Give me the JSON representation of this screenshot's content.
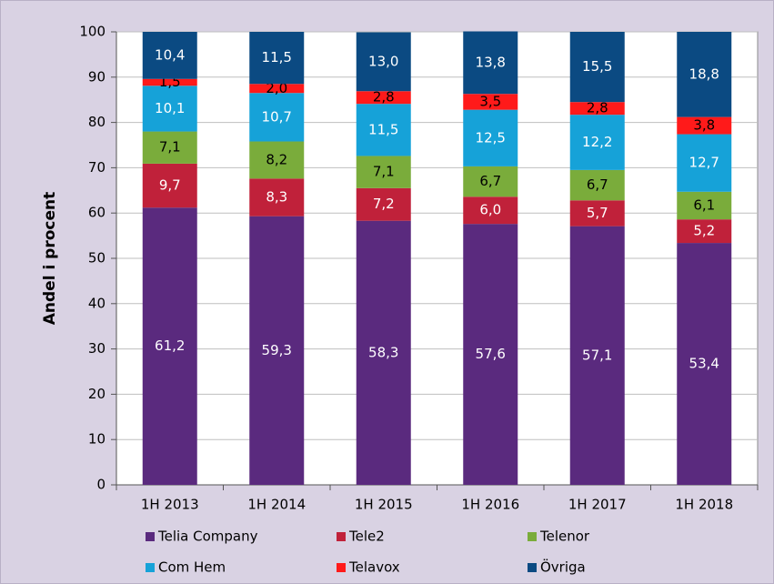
{
  "chart_data": {
    "type": "stacked_bar",
    "y_label": "Andel i procent",
    "categories": [
      "1H 2013",
      "1H 2014",
      "1H 2015",
      "1H 2016",
      "1H 2017",
      "1H 2018"
    ],
    "series": [
      {
        "name": "Telia Company",
        "color": "#5a2a7e",
        "label_color": "#ffffff",
        "values": [
          61.2,
          59.3,
          58.3,
          57.6,
          57.1,
          53.4
        ],
        "value_labels": [
          "61,2",
          "59,3",
          "58,3",
          "57,6",
          "57,1",
          "53,4"
        ]
      },
      {
        "name": "Tele2",
        "color": "#c0213a",
        "label_color": "#ffffff",
        "values": [
          9.7,
          8.3,
          7.2,
          6.0,
          5.7,
          5.2
        ],
        "value_labels": [
          "9,7",
          "8,3",
          "7,2",
          "6,0",
          "5,7",
          "5,2"
        ]
      },
      {
        "name": "Telenor",
        "color": "#7aac3b",
        "label_color": "#000000",
        "values": [
          7.1,
          8.2,
          7.1,
          6.7,
          6.7,
          6.1
        ],
        "value_labels": [
          "7,1",
          "8,2",
          "7,1",
          "6,7",
          "6,7",
          "6,1"
        ]
      },
      {
        "name": "Com Hem",
        "color": "#16a2d8",
        "label_color": "#ffffff",
        "values": [
          10.1,
          10.7,
          11.5,
          12.5,
          12.2,
          12.7
        ],
        "value_labels": [
          "10,1",
          "10,7",
          "11,5",
          "12,5",
          "12,2",
          "12,7"
        ]
      },
      {
        "name": "Telavox",
        "color": "#ff1a1a",
        "label_color": "#000000",
        "values": [
          1.5,
          2.0,
          2.8,
          3.5,
          2.8,
          3.8
        ],
        "value_labels": [
          "1,5",
          "2,0",
          "2,8",
          "3,5",
          "2,8",
          "3,8"
        ]
      },
      {
        "name": "Övriga",
        "color": "#0b4a82",
        "label_color": "#ffffff",
        "values": [
          10.4,
          11.5,
          13.0,
          13.8,
          15.5,
          18.8
        ],
        "value_labels": [
          "10,4",
          "11,5",
          "13,0",
          "13,8",
          "15,5",
          "18,8"
        ]
      }
    ],
    "ylim": [
      0,
      100
    ],
    "yticks": [
      0,
      10,
      20,
      30,
      40,
      50,
      60,
      70,
      80,
      90,
      100
    ],
    "grid": true,
    "legend": "bottom"
  }
}
